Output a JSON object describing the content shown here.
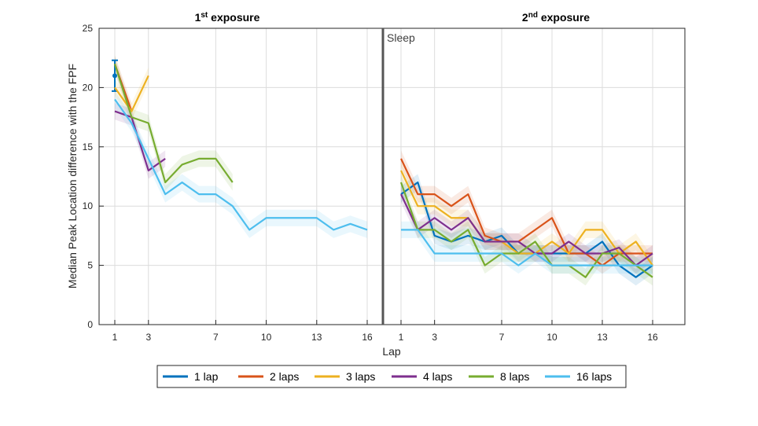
{
  "chart_data": {
    "type": "line",
    "ylabel": "Median Peak Location difference with the FPF",
    "xlabel": "Lap",
    "ylim": [
      0,
      25
    ],
    "yticks": [
      "0",
      "5",
      "10",
      "15",
      "20",
      "25"
    ],
    "xtick_labels": [
      "1",
      "3",
      "7",
      "10",
      "13",
      "16"
    ],
    "grid": true,
    "legend_position": "bottom",
    "panels": [
      {
        "title_main": "1",
        "title_sup": "st",
        "title_rest": " exposure"
      },
      {
        "title_main": "2",
        "title_sup": "nd",
        "title_rest": " exposure"
      }
    ],
    "annotation": "Sleep",
    "series": [
      {
        "name": "1 lap",
        "color": "#0072BD",
        "first": [
          [
            1,
            21
          ]
        ],
        "second": [
          [
            1,
            11
          ],
          [
            2,
            12
          ],
          [
            3,
            7.5
          ],
          [
            4,
            7
          ],
          [
            5,
            7.5
          ],
          [
            6,
            7
          ],
          [
            7,
            7.5
          ],
          [
            8,
            6
          ],
          [
            9,
            6
          ],
          [
            10,
            6
          ],
          [
            11,
            6
          ],
          [
            12,
            6
          ],
          [
            13,
            7
          ],
          [
            14,
            5
          ],
          [
            15,
            4
          ],
          [
            16,
            5
          ]
        ]
      },
      {
        "name": "2 laps",
        "color": "#D95319",
        "first": [
          [
            1,
            22
          ],
          [
            2,
            18
          ]
        ],
        "second": [
          [
            1,
            14
          ],
          [
            2,
            11
          ],
          [
            3,
            11
          ],
          [
            4,
            10
          ],
          [
            5,
            11
          ],
          [
            6,
            7.5
          ],
          [
            7,
            7
          ],
          [
            8,
            7
          ],
          [
            9,
            8
          ],
          [
            10,
            9
          ],
          [
            11,
            6
          ],
          [
            12,
            6
          ],
          [
            13,
            5
          ],
          [
            14,
            6
          ],
          [
            15,
            6
          ],
          [
            16,
            6
          ]
        ]
      },
      {
        "name": "3 laps",
        "color": "#EDB120",
        "first": [
          [
            1,
            20
          ],
          [
            2,
            18
          ],
          [
            3,
            21
          ]
        ],
        "second": [
          [
            1,
            13
          ],
          [
            2,
            10
          ],
          [
            3,
            10
          ],
          [
            4,
            9
          ],
          [
            5,
            9
          ],
          [
            6,
            7
          ],
          [
            7,
            7
          ],
          [
            8,
            6
          ],
          [
            9,
            6
          ],
          [
            10,
            7
          ],
          [
            11,
            6
          ],
          [
            12,
            8
          ],
          [
            13,
            8
          ],
          [
            14,
            6
          ],
          [
            15,
            7
          ],
          [
            16,
            5
          ]
        ]
      },
      {
        "name": "4 laps",
        "color": "#7E2F8E",
        "first": [
          [
            1,
            18
          ],
          [
            2,
            17.5
          ],
          [
            3,
            13
          ],
          [
            4,
            14
          ]
        ],
        "second": [
          [
            1,
            11
          ],
          [
            2,
            8
          ],
          [
            3,
            9
          ],
          [
            4,
            8
          ],
          [
            5,
            9
          ],
          [
            6,
            7
          ],
          [
            7,
            7
          ],
          [
            8,
            7
          ],
          [
            9,
            6
          ],
          [
            10,
            6
          ],
          [
            11,
            7
          ],
          [
            12,
            6
          ],
          [
            13,
            6
          ],
          [
            14,
            6.5
          ],
          [
            15,
            5
          ],
          [
            16,
            6
          ]
        ]
      },
      {
        "name": "8 laps",
        "color": "#77AC30",
        "first": [
          [
            1,
            22
          ],
          [
            2,
            17.5
          ],
          [
            3,
            17
          ],
          [
            4,
            12
          ],
          [
            5,
            13.5
          ],
          [
            6,
            14
          ],
          [
            7,
            14
          ],
          [
            8,
            12
          ]
        ],
        "second": [
          [
            1,
            12
          ],
          [
            2,
            8
          ],
          [
            3,
            8
          ],
          [
            4,
            7
          ],
          [
            5,
            8
          ],
          [
            6,
            5
          ],
          [
            7,
            6
          ],
          [
            8,
            6
          ],
          [
            9,
            7
          ],
          [
            10,
            5
          ],
          [
            11,
            5
          ],
          [
            12,
            4
          ],
          [
            13,
            6
          ],
          [
            14,
            6
          ],
          [
            15,
            5
          ],
          [
            16,
            4
          ]
        ]
      },
      {
        "name": "16 laps",
        "color": "#4DBEEE",
        "first": [
          [
            1,
            19
          ],
          [
            2,
            17
          ],
          [
            3,
            14
          ],
          [
            4,
            11
          ],
          [
            5,
            12
          ],
          [
            6,
            11
          ],
          [
            7,
            11
          ],
          [
            8,
            10
          ],
          [
            9,
            8
          ],
          [
            10,
            9
          ],
          [
            11,
            9
          ],
          [
            12,
            9
          ],
          [
            13,
            9
          ],
          [
            14,
            8
          ],
          [
            15,
            8.5
          ],
          [
            16,
            8
          ]
        ],
        "second": [
          [
            1,
            8
          ],
          [
            2,
            8
          ],
          [
            3,
            6
          ],
          [
            4,
            6
          ],
          [
            5,
            6
          ],
          [
            6,
            6
          ],
          [
            7,
            6
          ],
          [
            8,
            5
          ],
          [
            9,
            6
          ],
          [
            10,
            5
          ],
          [
            11,
            5
          ],
          [
            12,
            5
          ],
          [
            13,
            5
          ],
          [
            14,
            5
          ],
          [
            15,
            5
          ],
          [
            16,
            5
          ]
        ]
      }
    ]
  }
}
